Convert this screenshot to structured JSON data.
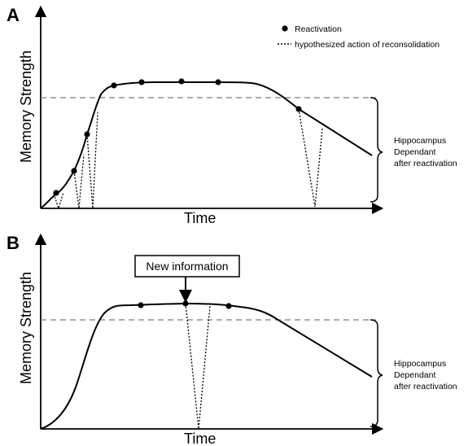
{
  "panel_a": {
    "letter": "A",
    "ylabel": "Memory Strength",
    "xlabel": "Time",
    "legend": {
      "reactivation": "Reactivation",
      "reconsolidation": "hypothesized action of reconsolidation"
    },
    "brace_note": [
      "Hippocampus",
      "Dependant",
      "after reactivation"
    ]
  },
  "panel_b": {
    "letter": "B",
    "ylabel": "Memory Strength",
    "xlabel": "Time",
    "callout": "New information",
    "brace_note": [
      "Hippocampus",
      "Dependant",
      "after reactivation"
    ]
  },
  "colors": {
    "line": "#000000",
    "dashed": "#7a7a7a"
  }
}
